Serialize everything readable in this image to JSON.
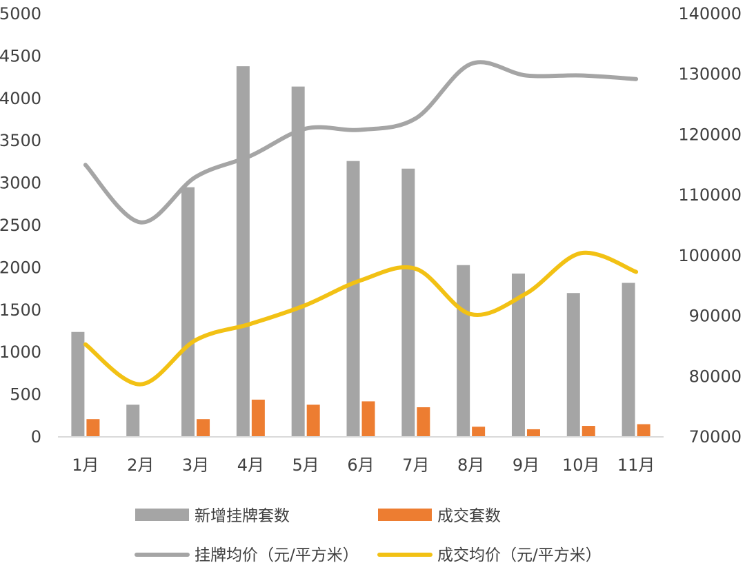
{
  "chart_data": {
    "type": "bar",
    "categories": [
      "1月",
      "2月",
      "3月",
      "4月",
      "5月",
      "6月",
      "7月",
      "8月",
      "9月",
      "10月",
      "11月"
    ],
    "y_left": {
      "lim": [
        0,
        5000
      ],
      "ticks": [
        0,
        500,
        1000,
        1500,
        2000,
        2500,
        3000,
        3500,
        4000,
        4500,
        5000
      ]
    },
    "y_right": {
      "lim": [
        70000,
        140000
      ],
      "ticks": [
        70000,
        80000,
        90000,
        100000,
        110000,
        120000,
        130000,
        140000
      ]
    },
    "grid": false,
    "legend_position": "bottom",
    "series": [
      {
        "name": "新增挂牌套数",
        "kind": "bar",
        "axis": "left",
        "color": "#a5a5a5",
        "values": [
          1240,
          380,
          2950,
          4380,
          4140,
          3260,
          3170,
          2030,
          1930,
          1700,
          1820
        ]
      },
      {
        "name": "成交套数",
        "kind": "bar",
        "axis": "left",
        "color": "#ed7d31",
        "values": [
          210,
          null,
          210,
          440,
          380,
          420,
          350,
          120,
          90,
          130,
          150
        ]
      },
      {
        "name": "挂牌均价（元/平方米）",
        "kind": "line",
        "axis": "right",
        "color": "#a5a5a5",
        "values": [
          115000,
          105500,
          113000,
          116500,
          121000,
          120800,
          122700,
          131700,
          129800,
          129800,
          129200
        ]
      },
      {
        "name": "成交均价（元/平方米）",
        "kind": "line",
        "axis": "right",
        "color": "#f2c114",
        "values": [
          85300,
          78700,
          86000,
          88700,
          91800,
          95900,
          97800,
          90300,
          93700,
          100400,
          97300
        ]
      }
    ]
  }
}
